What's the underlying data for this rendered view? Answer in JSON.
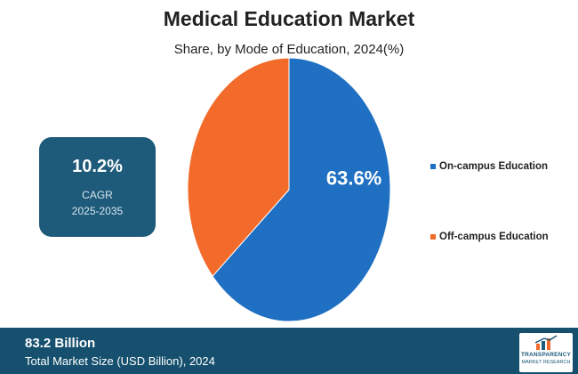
{
  "chart_data": {
    "type": "pie",
    "title": "Medical Education Market",
    "subtitle": "Share, by Mode of Education, 2024(%)",
    "slices": [
      {
        "label": "On-campus Education",
        "value": 63.6,
        "color": "#1f6fc3",
        "data_label": "63.6%"
      },
      {
        "label": "Off-campus Education",
        "value": 36.4,
        "color": "#f26b2b"
      }
    ],
    "legend_position": "right"
  },
  "cagr": {
    "value": "10.2%",
    "label": "CAGR",
    "range": "2025-2035"
  },
  "footer": {
    "value": "83.2  Billion",
    "label": "Total Market Size (USD Billion), 2024"
  },
  "logo": {
    "line1": "TRANSPARENCY",
    "line2": "MARKET RESEARCH"
  },
  "colors": {
    "box": "#1e5a7a",
    "footer": "#16506e"
  }
}
